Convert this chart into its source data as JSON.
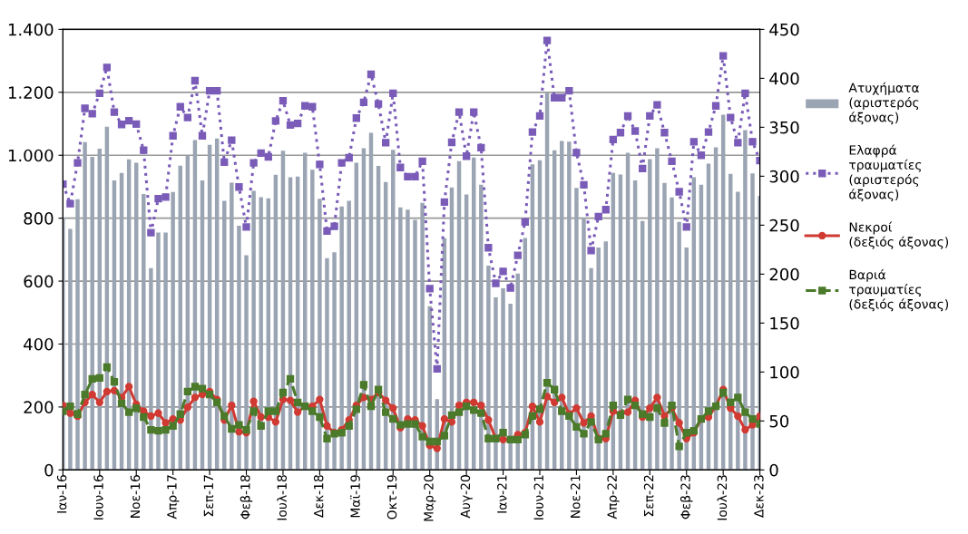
{
  "chart_data": {
    "type": "bar",
    "categories": [
      "Ιαν-16",
      null,
      null,
      null,
      null,
      "Ιουν-16",
      null,
      null,
      null,
      null,
      "Νοε-16",
      null,
      null,
      null,
      null,
      "Απρ-17",
      null,
      null,
      null,
      null,
      "Σεπ-17",
      null,
      null,
      null,
      null,
      "Φεβ-18",
      null,
      null,
      null,
      null,
      "Ιουλ-18",
      null,
      null,
      null,
      null,
      "Δεκ-18",
      null,
      null,
      null,
      null,
      "Μαϊ-19",
      null,
      null,
      null,
      null,
      "Οκτ-19",
      null,
      null,
      null,
      null,
      "Μαρ-20",
      null,
      null,
      null,
      null,
      "Αυγ-20",
      null,
      null,
      null,
      null,
      "Ιαν-21",
      null,
      null,
      null,
      null,
      "Ιουν-21",
      null,
      null,
      null,
      null,
      "Νοε-21",
      null,
      null,
      null,
      null,
      "Απρ-22",
      null,
      null,
      null,
      null,
      "Σεπ-22",
      null,
      null,
      null,
      null,
      "Φεβ-23",
      null,
      null,
      null,
      null,
      "Ιουλ-23",
      null,
      null,
      null,
      null,
      "Δεκ-23"
    ],
    "series": [
      {
        "name": "Ατυχήματα\n(αριστερός\nάξονας)",
        "color": "#9aa4b2",
        "values": [
          802,
          766,
          860,
          1042,
          995,
          1021,
          1091,
          920,
          944,
          987,
          976,
          877,
          641,
          754,
          754,
          883,
          967,
          999,
          1048,
          920,
          1033,
          1053,
          855,
          913,
          776,
          682,
          887,
          867,
          863,
          938,
          1014,
          930,
          932,
          1008,
          954,
          862,
          673,
          692,
          837,
          855,
          976,
          1022,
          1071,
          966,
          915,
          1017,
          834,
          827,
          795,
          849,
          520,
          225,
          736,
          898,
          981,
          875,
          993,
          906,
          649,
          548,
          577,
          528,
          624,
          737,
          971,
          984,
          1199,
          1016,
          1045,
          1043,
          896,
          802,
          641,
          707,
          726,
          944,
          939,
          1008,
          920,
          791,
          988,
          1022,
          912,
          866,
          788,
          707,
          930,
          906,
          973,
          1025,
          1129,
          941,
          884,
          1080,
          942,
          870
        ]
      },
      {
        "name": "Ελαφρά\nτραυματίες\n(αριστερός\nάξονας)",
        "type": "line",
        "color": "#7a5cb8",
        "marker": "square",
        "line_style": "dotted",
        "values": [
          908,
          846,
          976,
          1149,
          1132,
          1197,
          1279,
          1137,
          1098,
          1110,
          1099,
          1016,
          754,
          862,
          867,
          1062,
          1154,
          1120,
          1237,
          1062,
          1205,
          1205,
          978,
          1048,
          899,
          772,
          976,
          1007,
          995,
          1109,
          1173,
          1096,
          1101,
          1157,
          1154,
          971,
          759,
          774,
          976,
          992,
          1118,
          1168,
          1257,
          1163,
          1040,
          1197,
          961,
          932,
          932,
          981,
          576,
          321,
          851,
          1041,
          1137,
          997,
          1137,
          1024,
          706,
          593,
          631,
          578,
          682,
          788,
          1074,
          1125,
          1365,
          1183,
          1183,
          1205,
          1008,
          906,
          697,
          805,
          827,
          1050,
          1072,
          1125,
          1077,
          958,
          1125,
          1160,
          1072,
          981,
          884,
          772,
          1043,
          1000,
          1074,
          1157,
          1316,
          1120,
          1040,
          1197,
          1043,
          983
        ]
      },
      {
        "name": "Νεκροί\n(δεξιός άξονας)",
        "type": "line",
        "axis": "y2",
        "color": "#d03a32",
        "marker": "circle",
        "line_style": "solid",
        "values": [
          66,
          58,
          55,
          69,
          77,
          69,
          80,
          81,
          74,
          85,
          67,
          60,
          55,
          58,
          48,
          52,
          51,
          64,
          74,
          77,
          80,
          72,
          51,
          66,
          39,
          38,
          70,
          54,
          54,
          49,
          72,
          71,
          59,
          65,
          65,
          72,
          45,
          38,
          41,
          51,
          66,
          74,
          72,
          79,
          71,
          63,
          43,
          52,
          51,
          45,
          25,
          22,
          52,
          49,
          66,
          69,
          69,
          66,
          51,
          32,
          31,
          31,
          36,
          38,
          65,
          49,
          75,
          69,
          74,
          57,
          63,
          48,
          55,
          32,
          32,
          60,
          57,
          59,
          71,
          54,
          63,
          74,
          55,
          63,
          48,
          32,
          38,
          52,
          54,
          65,
          82,
          63,
          55,
          41,
          46,
          55
        ]
      },
      {
        "name": "Βαριά\nτραυματίες\n(δεξιός άξονας)",
        "type": "line",
        "axis": "y2",
        "color": "#4a7a2a",
        "marker": "square",
        "line_style": "dashed",
        "values": [
          60,
          65,
          57,
          77,
          93,
          94,
          105,
          90,
          68,
          59,
          63,
          54,
          41,
          40,
          41,
          45,
          57,
          80,
          85,
          83,
          77,
          69,
          55,
          42,
          46,
          41,
          60,
          45,
          60,
          60,
          79,
          93,
          69,
          65,
          60,
          54,
          32,
          37,
          38,
          45,
          62,
          87,
          65,
          82,
          59,
          52,
          46,
          47,
          47,
          34,
          29,
          29,
          35,
          56,
          59,
          65,
          61,
          58,
          32,
          32,
          38,
          31,
          31,
          36,
          55,
          62,
          89,
          82,
          60,
          55,
          44,
          37,
          49,
          31,
          37,
          66,
          56,
          72,
          66,
          57,
          54,
          63,
          48,
          66,
          24,
          38,
          40,
          52,
          60,
          65,
          79,
          69,
          74,
          59,
          52,
          47
        ]
      }
    ],
    "ylim": [
      0,
      1400
    ],
    "yticks": [
      0,
      200,
      400,
      600,
      800,
      {
        "value": 1000,
        "label": "1.000"
      },
      {
        "value": 1200,
        "label": "1.200"
      },
      {
        "value": 1400,
        "label": "1.400"
      }
    ],
    "y2lim": [
      0,
      450
    ],
    "y2ticks": [
      0,
      50,
      100,
      150,
      200,
      250,
      300,
      350,
      400,
      450
    ],
    "grid": "y",
    "legend": "right"
  }
}
